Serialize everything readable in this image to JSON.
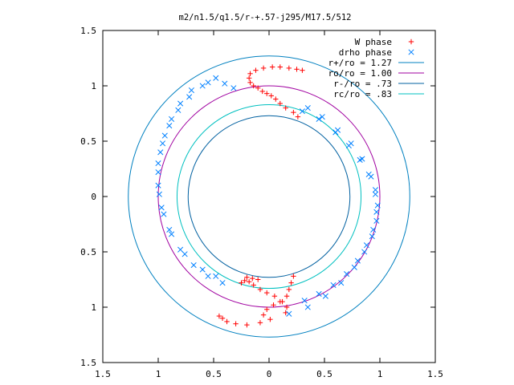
{
  "chart_data": {
    "type": "scatter",
    "title": "m2/n1.5/q1.5/r-+.57-j295/M17.5/512",
    "xlim": [
      -1.5,
      1.5
    ],
    "ylim": [
      -1.5,
      1.5
    ],
    "xticks": [
      "1.5",
      "1",
      "0.5",
      "0",
      "0.5",
      "1",
      "1.5"
    ],
    "xtick_values": [
      -1.5,
      -1,
      -0.5,
      0,
      0.5,
      1,
      1.5
    ],
    "yticks": [
      "1.5",
      "1",
      "0.5",
      "0",
      "0.5",
      "1",
      "1.5"
    ],
    "ytick_values": [
      1.5,
      1,
      0.5,
      0,
      -0.5,
      -1,
      -1.5
    ],
    "grid": false,
    "legend_position": "top-right",
    "series": [
      {
        "name": "W phase",
        "marker": "plus",
        "color": "#ff0000",
        "points": [
          [
            0.26,
            0.72
          ],
          [
            0.22,
            0.76
          ],
          [
            0.15,
            0.8
          ],
          [
            0.1,
            0.84
          ],
          [
            0.06,
            0.88
          ],
          [
            0.02,
            0.91
          ],
          [
            -0.02,
            0.93
          ],
          [
            -0.06,
            0.95
          ],
          [
            -0.1,
            0.98
          ],
          [
            -0.14,
            1.0
          ],
          [
            -0.17,
            1.03
          ],
          [
            -0.18,
            1.07
          ],
          [
            -0.17,
            1.11
          ],
          [
            -0.12,
            1.14
          ],
          [
            -0.05,
            1.16
          ],
          [
            0.03,
            1.17
          ],
          [
            0.1,
            1.17
          ],
          [
            0.18,
            1.16
          ],
          [
            0.25,
            1.15
          ],
          [
            0.3,
            1.14
          ],
          [
            0.22,
            -0.72
          ],
          [
            0.2,
            -0.78
          ],
          [
            0.18,
            -0.84
          ],
          [
            0.16,
            -0.9
          ],
          [
            0.1,
            -0.95
          ],
          [
            0.04,
            -0.98
          ],
          [
            -0.02,
            -1.02
          ],
          [
            -0.05,
            -1.07
          ],
          [
            0.01,
            -1.11
          ],
          [
            -0.08,
            -1.14
          ],
          [
            -0.2,
            -1.16
          ],
          [
            -0.3,
            -1.15
          ],
          [
            -0.38,
            -1.13
          ],
          [
            -0.42,
            -1.1
          ],
          [
            -0.45,
            -1.08
          ],
          [
            0.15,
            -1.05
          ],
          [
            0.16,
            -1.0
          ],
          [
            0.12,
            -0.95
          ],
          [
            0.05,
            -0.9
          ],
          [
            -0.02,
            -0.87
          ],
          [
            -0.08,
            -0.84
          ],
          [
            -0.14,
            -0.8
          ],
          [
            -0.18,
            -0.77
          ],
          [
            -0.22,
            -0.76
          ],
          [
            -0.25,
            -0.78
          ],
          [
            -0.2,
            -0.73
          ],
          [
            -0.15,
            -0.74
          ],
          [
            -0.1,
            -0.75
          ]
        ]
      },
      {
        "name": "drho phase",
        "marker": "cross",
        "color": "#0080ff",
        "points": [
          [
            0.3,
            0.77
          ],
          [
            0.45,
            0.7
          ],
          [
            0.6,
            0.58
          ],
          [
            0.72,
            0.46
          ],
          [
            0.82,
            0.33
          ],
          [
            0.9,
            0.2
          ],
          [
            0.96,
            0.06
          ],
          [
            0.98,
            -0.08
          ],
          [
            0.97,
            -0.22
          ],
          [
            0.93,
            -0.36
          ],
          [
            0.86,
            -0.5
          ],
          [
            0.77,
            -0.64
          ],
          [
            0.65,
            -0.78
          ],
          [
            0.51,
            -0.9
          ],
          [
            0.35,
            -1.0
          ],
          [
            0.18,
            -1.06
          ],
          [
            -0.48,
            1.07
          ],
          [
            -0.6,
            1.0
          ],
          [
            -0.72,
            0.9
          ],
          [
            -0.82,
            0.78
          ],
          [
            -0.9,
            0.64
          ],
          [
            -0.96,
            0.48
          ],
          [
            -1.0,
            0.3
          ],
          [
            -1.0,
            0.1
          ],
          [
            -0.97,
            -0.1
          ],
          [
            -0.9,
            -0.3
          ],
          [
            -0.8,
            -0.48
          ],
          [
            -0.68,
            -0.62
          ],
          [
            -0.55,
            -0.72
          ],
          [
            -0.42,
            -0.78
          ],
          [
            -0.32,
            0.98
          ],
          [
            -0.4,
            1.02
          ],
          [
            -0.55,
            1.03
          ],
          [
            -0.7,
            0.96
          ],
          [
            -0.8,
            0.84
          ],
          [
            -0.88,
            0.7
          ],
          [
            -0.94,
            0.55
          ],
          [
            -0.98,
            0.4
          ],
          [
            -1.0,
            0.22
          ],
          [
            -0.99,
            0.02
          ],
          [
            -0.95,
            -0.16
          ],
          [
            -0.88,
            -0.34
          ],
          [
            -0.76,
            -0.52
          ],
          [
            -0.6,
            -0.66
          ],
          [
            -0.48,
            -0.72
          ],
          [
            0.35,
            0.8
          ],
          [
            0.48,
            0.72
          ],
          [
            0.62,
            0.6
          ],
          [
            0.74,
            0.48
          ],
          [
            0.84,
            0.34
          ],
          [
            0.92,
            0.18
          ],
          [
            0.96,
            0.02
          ],
          [
            0.97,
            -0.14
          ],
          [
            0.94,
            -0.3
          ],
          [
            0.88,
            -0.44
          ],
          [
            0.8,
            -0.58
          ],
          [
            0.7,
            -0.7
          ],
          [
            0.58,
            -0.8
          ],
          [
            0.45,
            -0.88
          ],
          [
            0.32,
            -0.94
          ]
        ]
      }
    ],
    "circles": [
      {
        "name": "r+/ro = 1.27",
        "radius": 1.27,
        "color": "#0080c0"
      },
      {
        "name": "ro/ro = 1.00",
        "radius": 1.0,
        "color": "#a000a0"
      },
      {
        "name": "r-/ro = .73",
        "radius": 0.73,
        "color": "#0060a0"
      },
      {
        "name": "rc/ro = .83",
        "radius": 0.83,
        "color": "#00c0c0"
      }
    ]
  }
}
